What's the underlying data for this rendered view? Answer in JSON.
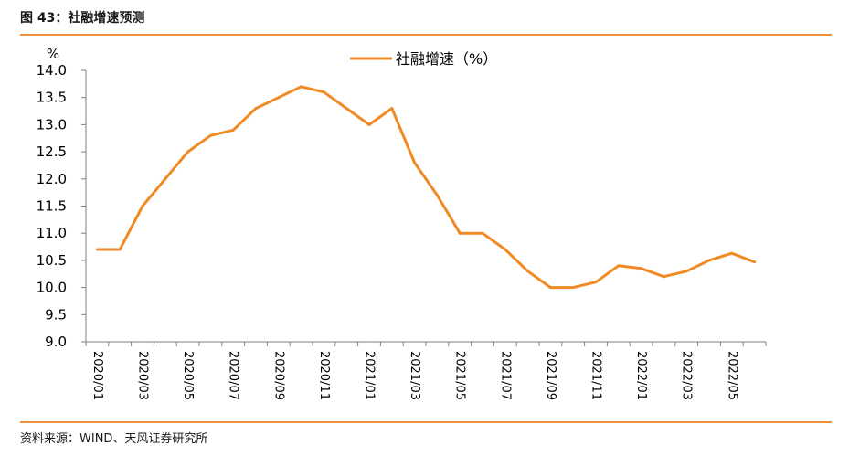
{
  "figure": {
    "title": "图 43：社融增速预测",
    "source": "资料来源：WIND、天风证券研究所"
  },
  "chart_data": {
    "type": "line",
    "ylabel": "%",
    "ylim": [
      9.0,
      14.0
    ],
    "y_ticks": [
      "9.0",
      "9.5",
      "10.0",
      "10.5",
      "11.0",
      "11.5",
      "12.0",
      "12.5",
      "13.0",
      "13.5",
      "14.0"
    ],
    "x": [
      "2020/01",
      "2020/02",
      "2020/03",
      "2020/04",
      "2020/05",
      "2020/06",
      "2020/07",
      "2020/08",
      "2020/09",
      "2020/10",
      "2020/11",
      "2020/12",
      "2021/01",
      "2021/02",
      "2021/03",
      "2021/04",
      "2021/05",
      "2021/06",
      "2021/07",
      "2021/08",
      "2021/09",
      "2021/10",
      "2021/11",
      "2021/12",
      "2022/01",
      "2022/02",
      "2022/03",
      "2022/04",
      "2022/05",
      "2022/06"
    ],
    "x_tick_labels": [
      "2020/01",
      "2020/03",
      "2020/05",
      "2020/07",
      "2020/09",
      "2020/11",
      "2021/01",
      "2021/03",
      "2021/05",
      "2021/07",
      "2021/09",
      "2021/11",
      "2022/01",
      "2022/03",
      "2022/05"
    ],
    "series": [
      {
        "name": "社融增速（%）",
        "color": "#f08a24",
        "values": [
          10.7,
          10.7,
          11.5,
          12.0,
          12.5,
          12.8,
          12.9,
          13.3,
          13.5,
          13.7,
          13.6,
          13.3,
          13.0,
          13.3,
          12.3,
          11.7,
          11.0,
          11.0,
          10.7,
          10.3,
          10.0,
          10.0,
          10.1,
          10.4,
          10.35,
          10.2,
          10.3,
          10.5,
          10.63,
          10.47
        ]
      }
    ],
    "legend": "top-center",
    "grid": false,
    "axis_color": "#7f7f7f"
  }
}
